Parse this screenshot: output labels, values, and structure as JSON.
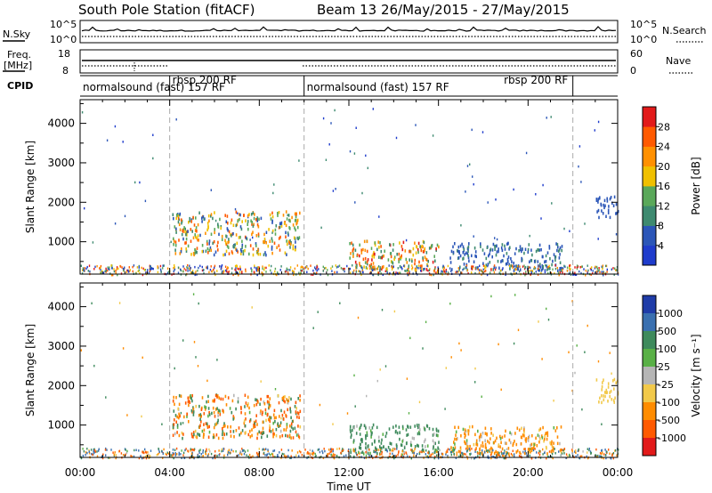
{
  "chart_data": {
    "type": "heatmap",
    "title": {
      "station": "South Pole Station (fitACF)",
      "beam": "Beam 13 26/May/2015 - 27/May/2015"
    },
    "xlabel": "Time UT",
    "x_ticks": [
      "00:00",
      "04:00",
      "08:00",
      "12:00",
      "16:00",
      "20:00",
      "00:00"
    ],
    "xlim_hours": [
      0,
      24
    ],
    "housekeeping": {
      "nsky": {
        "label": "N.Sky",
        "ticks": [
          "10^5",
          "10^0"
        ]
      },
      "nsearch": {
        "label": "N.Search",
        "ticks": [
          "10^5",
          "10^0"
        ]
      },
      "freq": {
        "label_line1": "Freq.",
        "label_line2": "[MHz]",
        "ticks": [
          "18",
          "8"
        ]
      },
      "nave": {
        "label": "Nave",
        "ticks": [
          "60",
          "0"
        ]
      },
      "cpid": {
        "label": "CPID",
        "modes": [
          {
            "start_h": 0,
            "end_h": 4,
            "label": "normalsound (fast) 157 RF"
          },
          {
            "start_h": 4,
            "end_h": 10,
            "label": "rbsp 200 RF"
          },
          {
            "start_h": 10,
            "end_h": 22,
            "label": "normalsound (fast) 157 RF"
          },
          {
            "start_h": 18.8,
            "end_h": 22,
            "label": "rbsp 200 RF"
          }
        ],
        "boundaries_h": [
          4,
          10,
          22
        ]
      }
    },
    "panels": [
      {
        "name": "power",
        "ylabel": "Slant Range [km]",
        "y_ticks": [
          1000,
          2000,
          3000,
          4000
        ],
        "ylim_km": [
          180,
          4600
        ],
        "colorbar_label": "Power [dB]",
        "colorbar_ticks": [
          "4",
          "8",
          "12",
          "16",
          "20",
          "24",
          "28"
        ],
        "colors": [
          "#1f3ccc",
          "#2b56b8",
          "#3e8a70",
          "#5aa85a",
          "#f0c000",
          "#ff9000",
          "#ff5a00",
          "#e21a1a"
        ]
      },
      {
        "name": "velocity",
        "ylabel": "Slant Range [km]",
        "y_ticks": [
          1000,
          2000,
          3000,
          4000
        ],
        "ylim_km": [
          180,
          4600
        ],
        "colorbar_label": "Velocity [m s⁻¹]",
        "colorbar_ticks": [
          "1000",
          "500",
          "100",
          "25",
          "-25",
          "-100",
          "-500",
          "-1000"
        ],
        "colors": [
          "#1f3ca8",
          "#3a70b0",
          "#3e8a5c",
          "#59b046",
          "#b5b5b5",
          "#f2c94a",
          "#ff8c00",
          "#ff5a00",
          "#e21a1a"
        ]
      }
    ],
    "echo_regions": [
      {
        "t0": 4.1,
        "t1": 9.8,
        "r0": 700,
        "r1": 1800,
        "p": [
          4,
          28
        ],
        "v": [
          -1000,
          500
        ]
      },
      {
        "t0": 12.0,
        "t1": 16.0,
        "r0": 300,
        "r1": 1050,
        "p": [
          8,
          30
        ],
        "v": [
          -25,
          500
        ]
      },
      {
        "t0": 16.5,
        "t1": 21.5,
        "r0": 300,
        "r1": 1000,
        "p": [
          4,
          10
        ],
        "v": [
          -500,
          100
        ]
      },
      {
        "t0": 23.0,
        "t1": 24.0,
        "r0": 1600,
        "r1": 2200,
        "p": [
          4,
          8
        ],
        "v": [
          -100,
          -25
        ]
      }
    ]
  }
}
